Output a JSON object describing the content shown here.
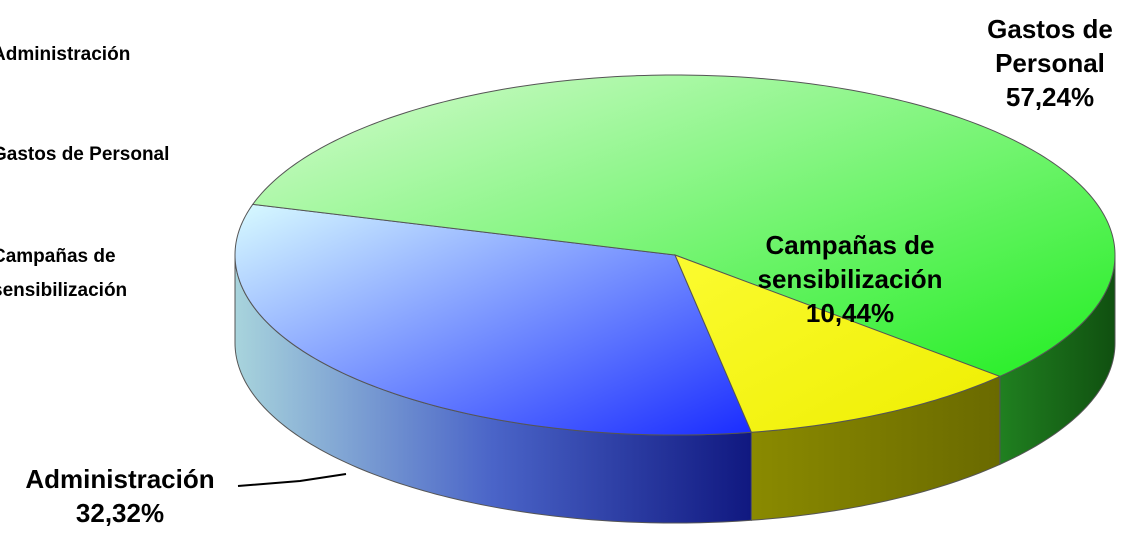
{
  "chart_data": {
    "type": "pie3d",
    "categories": [
      "Administración",
      "Gastos de Personal",
      "Campañas de sensibilización"
    ],
    "values": [
      32.32,
      57.24,
      10.44
    ],
    "value_labels": [
      "32,32%",
      "57,24%",
      "10,44%"
    ],
    "colors": [
      "#3a5cf0",
      "#3ef03a",
      "#f5f500"
    ],
    "legend": "left"
  }
}
